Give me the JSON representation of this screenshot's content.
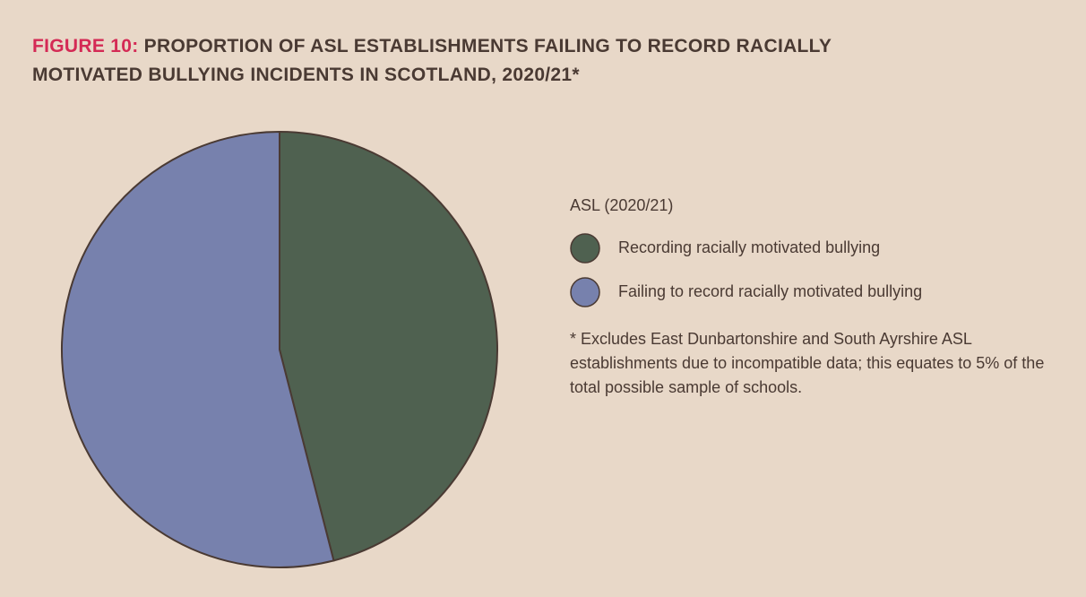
{
  "chart_data": {
    "type": "pie",
    "label": "FIGURE 10:",
    "title": "PROPORTION OF ASL ESTABLISHMENTS FAILING TO RECORD RACIALLY MOTIVATED BULLYING INCIDENTS IN SCOTLAND, 2020/21*",
    "legend_title": "ASL (2020/21)",
    "categories": [
      "Recording racially motivated bullying",
      "Failing to record racially motivated bullying"
    ],
    "values": [
      46,
      54
    ],
    "colors": [
      "#4f6150",
      "#7781ad"
    ],
    "note": "* Excludes East Dunbartonshire and South Ayrshire ASL establishments due to incompatible data; this equates to 5% of the total possible sample of schools."
  }
}
